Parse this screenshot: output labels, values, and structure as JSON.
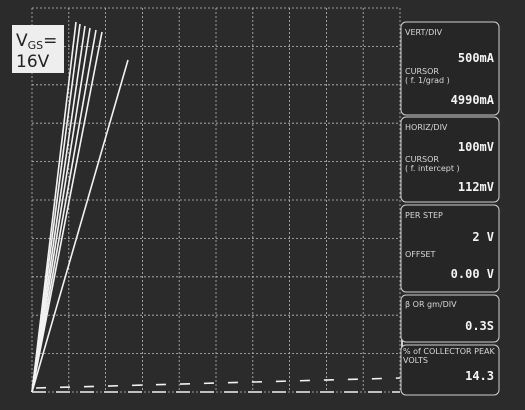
{
  "trace_label": {
    "symbol": "V",
    "subscript": "GS",
    "equals": "=",
    "value": "16V"
  },
  "panels": [
    {
      "title": "VERT/DIV",
      "value": "500mA",
      "sub_title": "CURSOR",
      "sub_note": "( f. 1/grad )",
      "sub_value": "4990mA"
    },
    {
      "title": "HORIZ/DIV",
      "value": "100mV",
      "sub_title": "CURSOR",
      "sub_note": "( f. intercept )",
      "sub_value": "112mV"
    },
    {
      "title": "PER STEP",
      "value": "2 V",
      "sub_title": "OFFSET",
      "sub_value": "0.00 V"
    },
    {
      "title": "β OR gm/DIV",
      "value": "0.3S"
    },
    {
      "title": "% of COLLECTOR PEAK VOLTS",
      "value": "14.3"
    }
  ]
}
